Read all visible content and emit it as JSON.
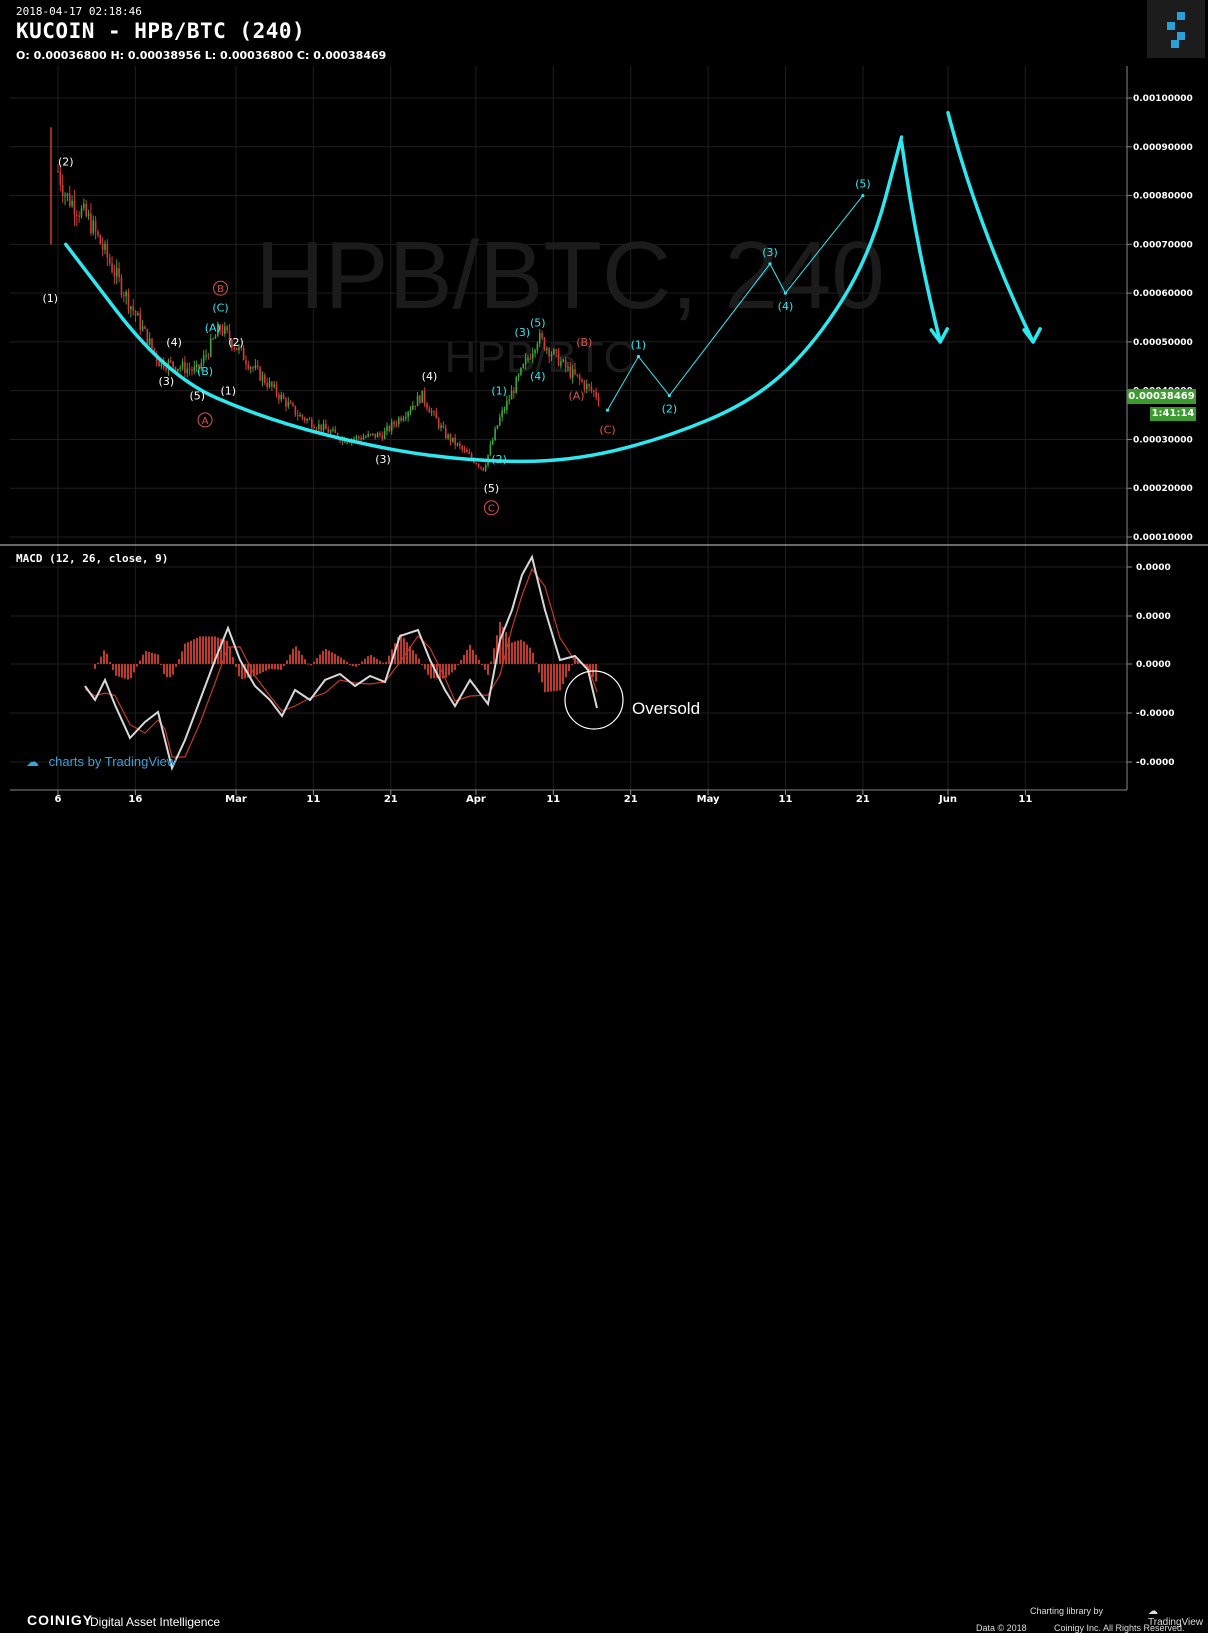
{
  "header": {
    "timestamp": "2018-04-17 02:18:46",
    "title": "KUCOIN - HPB/BTC (240)",
    "ohlc": "O: 0.00036800 H: 0.00038956 L: 0.00036800 C: 0.00038469"
  },
  "watermark": {
    "main": "HPB/BTC, 240",
    "sub": "HPB/BTC"
  },
  "price_axis": {
    "ticks": [
      "0.00100000",
      "0.00090000",
      "0.00080000",
      "0.00070000",
      "0.00060000",
      "0.00050000",
      "0.00040000",
      "0.00030000",
      "0.00020000",
      "0.00010000"
    ],
    "current_price": "0.00038469",
    "countdown": "1:41:14"
  },
  "time_axis": {
    "ticks": [
      "6",
      "16",
      "Mar",
      "11",
      "21",
      "Apr",
      "11",
      "21",
      "May",
      "11",
      "21",
      "Jun",
      "11"
    ]
  },
  "macd": {
    "label": "MACD (12, 26, close, 9)",
    "ticks": [
      "0.0000",
      "0.0000",
      "0.0000",
      "-0.0000",
      "-0.0000"
    ],
    "annotation": "Oversold"
  },
  "colors": {
    "background": "#000000",
    "cyan": "#2ee8f0",
    "up": "#3aa83a",
    "down": "#d23a3a",
    "macd_line": "#d8d8d8",
    "signal_line": "#c0392b",
    "price_tag": "#3c9b2e"
  },
  "chart_data": {
    "type": "candlestick",
    "title": "KUCOIN - HPB/BTC (240)",
    "ylabel": "",
    "ylim": [
      0.0001,
      0.00105
    ],
    "approx_close_path": [
      {
        "date": "2018-02-06",
        "close": 0.00085
      },
      {
        "date": "2018-02-07",
        "close": 0.0008
      },
      {
        "date": "2018-02-10",
        "close": 0.00075
      },
      {
        "date": "2018-02-14",
        "close": 0.00062
      },
      {
        "date": "2018-02-19",
        "close": 0.00046
      },
      {
        "date": "2018-02-24",
        "close": 0.00044
      },
      {
        "date": "2018-02-27",
        "close": 0.00053
      },
      {
        "date": "2018-03-03",
        "close": 0.00045
      },
      {
        "date": "2018-03-09",
        "close": 0.00035
      },
      {
        "date": "2018-03-15",
        "close": 0.0003
      },
      {
        "date": "2018-03-20",
        "close": 0.00031
      },
      {
        "date": "2018-03-25",
        "close": 0.00039
      },
      {
        "date": "2018-03-28",
        "close": 0.00031
      },
      {
        "date": "2018-04-02",
        "close": 0.00024
      },
      {
        "date": "2018-04-04",
        "close": 0.00034
      },
      {
        "date": "2018-04-09",
        "close": 0.00051
      },
      {
        "date": "2018-04-13",
        "close": 0.00044
      },
      {
        "date": "2018-04-17",
        "close": 0.000385
      }
    ],
    "wave_labels_white": [
      {
        "label": "(2)",
        "date": "2018-02-07",
        "value": 0.00087
      },
      {
        "label": "(1)",
        "date": "2018-02-05",
        "value": 0.00059
      },
      {
        "label": "(4)",
        "date": "2018-02-21",
        "value": 0.0005
      },
      {
        "label": "(3)",
        "date": "2018-02-20",
        "value": 0.00042
      },
      {
        "label": "(5)",
        "date": "2018-02-24",
        "value": 0.00039
      },
      {
        "label": "(2)",
        "date": "2018-03-01",
        "value": 0.0005
      },
      {
        "label": "(1)",
        "date": "2018-02-28",
        "value": 0.0004
      },
      {
        "label": "(4)",
        "date": "2018-03-26",
        "value": 0.00043
      },
      {
        "label": "(3)",
        "date": "2018-03-20",
        "value": 0.00026
      },
      {
        "label": "(5)",
        "date": "2018-04-03",
        "value": 0.0002
      }
    ],
    "wave_labels_cyan": [
      {
        "label": "(A)",
        "date": "2018-02-26",
        "value": 0.00053
      },
      {
        "label": "(C)",
        "date": "2018-02-27",
        "value": 0.00057
      },
      {
        "label": "(B)",
        "date": "2018-02-25",
        "value": 0.00044
      },
      {
        "label": "(1)",
        "date": "2018-04-04",
        "value": 0.0004
      },
      {
        "label": "(2)",
        "date": "2018-04-04",
        "value": 0.00026
      },
      {
        "label": "(3)",
        "date": "2018-04-07",
        "value": 0.00052
      },
      {
        "label": "(4)",
        "date": "2018-04-09",
        "value": 0.00043
      },
      {
        "label": "(5)",
        "date": "2018-04-09",
        "value": 0.00054
      }
    ],
    "wave_labels_red": [
      {
        "label": "(B)",
        "date": "2018-04-15",
        "value": 0.0005
      },
      {
        "label": "(A)",
        "date": "2018-04-14",
        "value": 0.00039
      },
      {
        "label": "(C)",
        "date": "2018-04-18",
        "value": 0.00032
      }
    ],
    "circled_labels": [
      {
        "label": "B",
        "date": "2018-02-27",
        "value": 0.00061
      },
      {
        "label": "A",
        "date": "2018-02-25",
        "value": 0.00034
      },
      {
        "label": "C",
        "date": "2018-04-03",
        "value": 0.00016
      }
    ],
    "projection_path": [
      {
        "label": "",
        "date": "2018-04-18",
        "value": 0.00036
      },
      {
        "label": "(1)",
        "date": "2018-04-22",
        "value": 0.00047
      },
      {
        "label": "(2)",
        "date": "2018-04-26",
        "value": 0.00039
      },
      {
        "label": "(3)",
        "date": "2018-05-09",
        "value": 0.00066
      },
      {
        "label": "(4)",
        "date": "2018-05-11",
        "value": 0.0006
      },
      {
        "label": "(5)",
        "date": "2018-05-21",
        "value": 0.0008
      }
    ],
    "cup_curve": [
      {
        "date": "2018-02-07",
        "value": 0.0007
      },
      {
        "date": "2018-02-20",
        "value": 0.00043
      },
      {
        "date": "2018-03-05",
        "value": 0.00034
      },
      {
        "date": "2018-03-20",
        "value": 0.00028
      },
      {
        "date": "2018-04-01",
        "value": 0.000255
      },
      {
        "date": "2018-04-13",
        "value": 0.000255
      },
      {
        "date": "2018-04-25",
        "value": 0.0003
      },
      {
        "date": "2018-05-07",
        "value": 0.00038
      },
      {
        "date": "2018-05-15",
        "value": 0.0005
      },
      {
        "date": "2018-05-22",
        "value": 0.00068
      },
      {
        "date": "2018-05-26",
        "value": 0.00092
      }
    ],
    "down_arrows": [
      {
        "start": {
          "date": "2018-05-26",
          "value": 0.00091
        },
        "end": {
          "date": "2018-05-31",
          "value": 0.0005
        }
      },
      {
        "start": {
          "date": "2018-06-01",
          "value": 0.00097
        },
        "end": {
          "date": "2018-06-12",
          "value": 0.0005
        }
      }
    ]
  }
}
